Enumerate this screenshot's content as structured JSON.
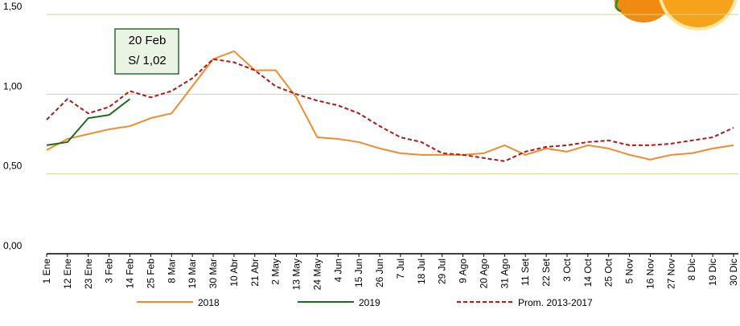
{
  "chart_data": {
    "type": "line",
    "categories": [
      "1 Ene",
      "12 Ene",
      "23 Ene",
      "3 Feb",
      "14 Feb",
      "25 Feb",
      "8 Mar",
      "19 Mar",
      "30 Mar",
      "10 Abr",
      "21 Abr",
      "2 May",
      "13 May",
      "24 May",
      "4 Jun",
      "15 Jun",
      "26 Jun",
      "7 Jul",
      "18 Jul",
      "29 Jul",
      "9 Ago",
      "20 Ago",
      "31 Ago",
      "11 Set",
      "22 Set",
      "3 Oct",
      "14 Oct",
      "25 Oct",
      "5 Nov",
      "16 Nov",
      "27 Nov",
      "8 Dic",
      "19 Dic",
      "30 Dic"
    ],
    "series": [
      {
        "name": "2018",
        "color": "#f28a30",
        "dashed": false,
        "values": [
          0.65,
          0.72,
          0.75,
          0.78,
          0.8,
          0.85,
          0.88,
          1.05,
          1.22,
          1.27,
          1.15,
          1.15,
          0.98,
          0.73,
          0.72,
          0.7,
          0.66,
          0.63,
          0.62,
          0.62,
          0.62,
          0.63,
          0.68,
          0.62,
          0.66,
          0.64,
          0.68,
          0.66,
          0.62,
          0.59,
          0.62,
          0.63,
          0.66,
          0.68
        ]
      },
      {
        "name": "2019",
        "color": "#1e6b1e",
        "dashed": false,
        "values": [
          0.68,
          0.7,
          0.85,
          0.87,
          0.97,
          null,
          null,
          null,
          null,
          null,
          null,
          null,
          null,
          null,
          null,
          null,
          null,
          null,
          null,
          null,
          null,
          null,
          null,
          null,
          null,
          null,
          null,
          null,
          null,
          null,
          null,
          null,
          null,
          null
        ]
      },
      {
        "name": "Prom. 2013-2017",
        "color": "#b01818",
        "dashed": true,
        "values": [
          0.84,
          0.97,
          0.88,
          0.92,
          1.02,
          0.98,
          1.02,
          1.1,
          1.22,
          1.2,
          1.15,
          1.05,
          1.0,
          0.96,
          0.93,
          0.88,
          0.8,
          0.73,
          0.7,
          0.63,
          0.62,
          0.6,
          0.58,
          0.64,
          0.67,
          0.68,
          0.7,
          0.71,
          0.68,
          0.68,
          0.69,
          0.71,
          0.73,
          0.79
        ]
      }
    ],
    "ylim": [
      0,
      1.5
    ],
    "yticks": [
      {
        "value": 0,
        "label": "0,00"
      },
      {
        "value": 0.5,
        "label": "0,50"
      },
      {
        "value": 1,
        "label": "1,00"
      },
      {
        "value": 1.5,
        "label": "1,50"
      }
    ],
    "grid": true,
    "annotations": [
      "20 Feb",
      "S/ 1,02"
    ],
    "legend": "bottom"
  }
}
